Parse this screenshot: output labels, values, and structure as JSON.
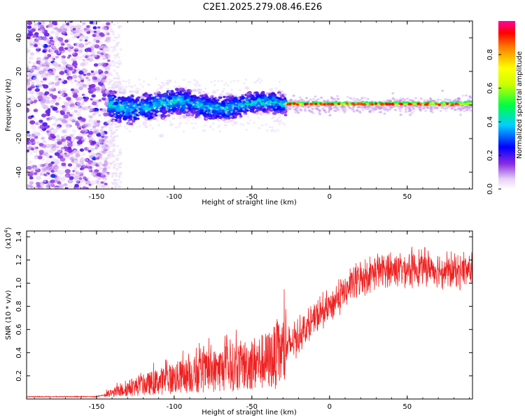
{
  "title": "C2E1.2025.279.08.46.E26",
  "chart_data": [
    {
      "type": "heatmap",
      "name": "spectrogram",
      "xlabel": "Height of straight line (km)",
      "ylabel": "Frequency (Hz)",
      "xlim": [
        -195,
        92
      ],
      "ylim": [
        -50,
        50
      ],
      "xticks": [
        -150,
        -100,
        -50,
        0,
        50
      ],
      "xtick_labels": [
        "-150",
        "-100",
        "-50",
        "0",
        "50"
      ],
      "yticks": [
        -40,
        -20,
        0,
        20,
        40
      ],
      "ytick_labels": [
        "-40",
        "-20",
        "0",
        "20",
        "40"
      ],
      "description_regions": [
        {
          "x_range": [
            -195,
            -142
          ],
          "freq_range": [
            -50,
            50
          ],
          "amplitude": 0.15
        },
        {
          "x_range": [
            -142,
            -28
          ],
          "freq_center": 0,
          "freq_halfwidth": 8,
          "amplitude": 0.3
        },
        {
          "x_range": [
            -28,
            92
          ],
          "freq_center": 0,
          "freq_halfwidth": 2,
          "amplitude": 0.8
        }
      ],
      "colorbar": {
        "label": "Normalized spectral amplitude",
        "range": [
          0.0,
          1.0
        ],
        "ticks": [
          0.0,
          0.2,
          0.4,
          0.6,
          0.8
        ],
        "tick_labels": [
          "0.0",
          "0.2",
          "0.4",
          "0.6",
          "0.8"
        ]
      }
    },
    {
      "type": "line",
      "name": "snr",
      "xlabel": "Height of straight line (km)",
      "ylabel": "SNR (10 * v/v)",
      "scale_label": "(x10",
      "scale_exp": "4",
      "scale_close": ")",
      "xlim": [
        -195,
        92
      ],
      "ylim": [
        0,
        1.45
      ],
      "xticks": [
        -150,
        -100,
        -50,
        0,
        50
      ],
      "xtick_labels": [
        "-150",
        "-100",
        "-50",
        "0",
        "50"
      ],
      "yticks": [
        0.2,
        0.4,
        0.6,
        0.8,
        1.0,
        1.2,
        1.4
      ],
      "ytick_labels": [
        "0.2",
        "0.4",
        "0.6",
        "0.8",
        "1.0",
        "1.2",
        "1.4"
      ],
      "series_color": "#ee2222",
      "trend": {
        "x": [
          -195,
          -150,
          -140,
          -130,
          -100,
          -60,
          -40,
          -30,
          -20,
          -10,
          0,
          10,
          20,
          30,
          40,
          60,
          80,
          92
        ],
        "y": [
          0.02,
          0.02,
          0.05,
          0.09,
          0.18,
          0.28,
          0.33,
          0.4,
          0.55,
          0.68,
          0.8,
          0.93,
          1.05,
          1.1,
          1.12,
          1.14,
          1.1,
          1.12
        ]
      }
    }
  ]
}
